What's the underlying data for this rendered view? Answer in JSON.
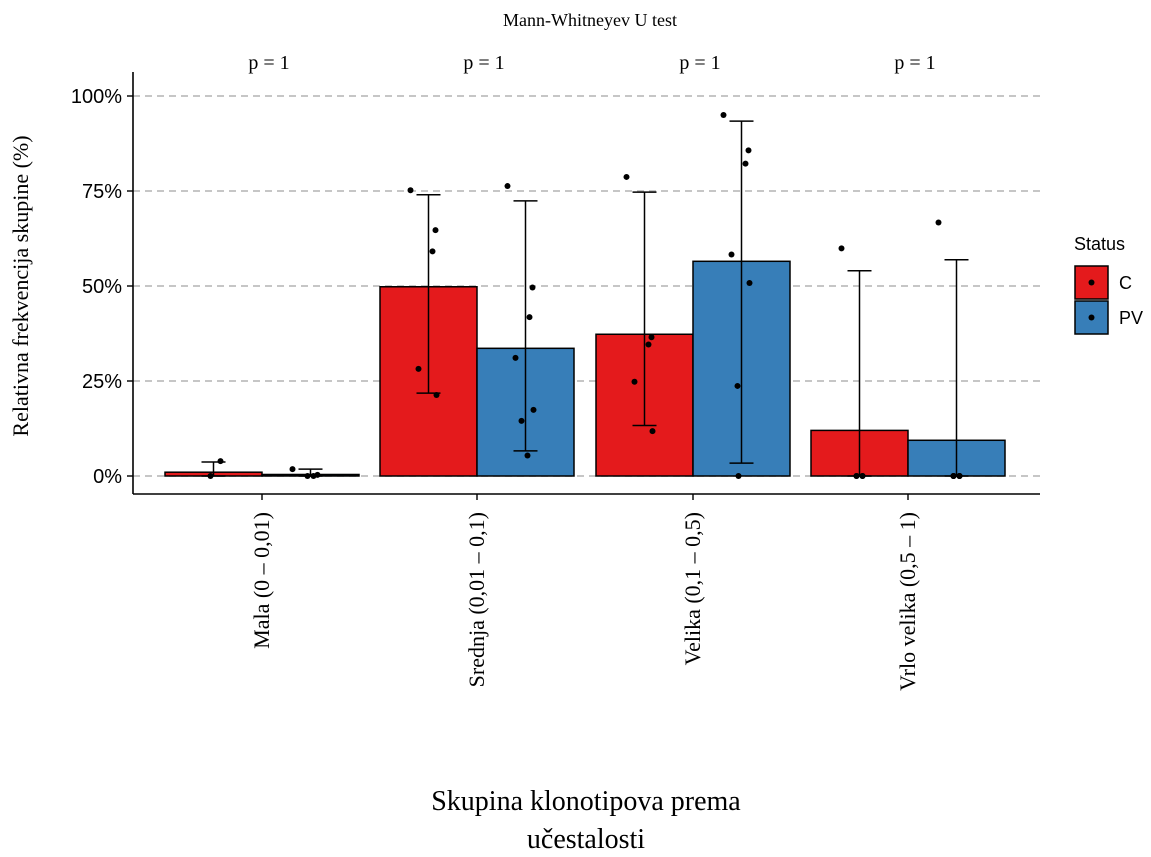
{
  "chart_data": {
    "type": "bar",
    "title": "Mann-Whitneyev U test",
    "xlabel_lines": [
      "Skupina klonotipova prema",
      "učestalosti"
    ],
    "ylabel": "Relativna frekvencija skupine (%)",
    "ylim": [
      0,
      100
    ],
    "yticks": [
      0,
      25,
      50,
      75,
      100
    ],
    "ytick_labels": [
      "0%",
      "25%",
      "50%",
      "75%",
      "100%"
    ],
    "grid": "horizontal dashed",
    "legend": {
      "title": "Status",
      "position": "right",
      "entries": [
        {
          "label": "C",
          "color": "#E41A1C"
        },
        {
          "label": "PV",
          "color": "#377EB8"
        }
      ]
    },
    "categories": [
      "Mala (0 – 0,01)",
      "Srednja (0,01 – 0,1)",
      "Velika (0,1 – 0,5)",
      "Vrlo velika (0,5 – 1)"
    ],
    "p_values": [
      "p = 1",
      "p = 1",
      "p = 1",
      "p = 1"
    ],
    "series": [
      {
        "name": "C",
        "color": "#E41A1C",
        "values": [
          1.0,
          49.8,
          37.3,
          12.0
        ],
        "error_low": [
          0,
          21.8,
          13.3,
          0
        ],
        "error_high": [
          3.7,
          74.0,
          74.7,
          54.0
        ],
        "points": [
          [
            0,
            3.9
          ],
          [
            75.2,
            64.7,
            59.1,
            28.2,
            21.3
          ],
          [
            78.7,
            36.5,
            34.6,
            24.8,
            11.8
          ],
          [
            59.9,
            0,
            0,
            0,
            0
          ]
        ]
      },
      {
        "name": "PV",
        "color": "#377EB8",
        "values": [
          0.4,
          33.6,
          56.5,
          9.4
        ],
        "error_low": [
          0,
          6.6,
          3.4,
          0
        ],
        "error_high": [
          1.8,
          72.4,
          93.4,
          56.9
        ],
        "points": [
          [
            1.8,
            0.3,
            0,
            0
          ],
          [
            76.3,
            49.6,
            41.8,
            31.1,
            17.4,
            14.5,
            5.4
          ],
          [
            95.0,
            85.7,
            82.2,
            58.3,
            50.8,
            23.7,
            0
          ],
          [
            66.7,
            0,
            0,
            0,
            0,
            0,
            0
          ]
        ]
      }
    ]
  }
}
